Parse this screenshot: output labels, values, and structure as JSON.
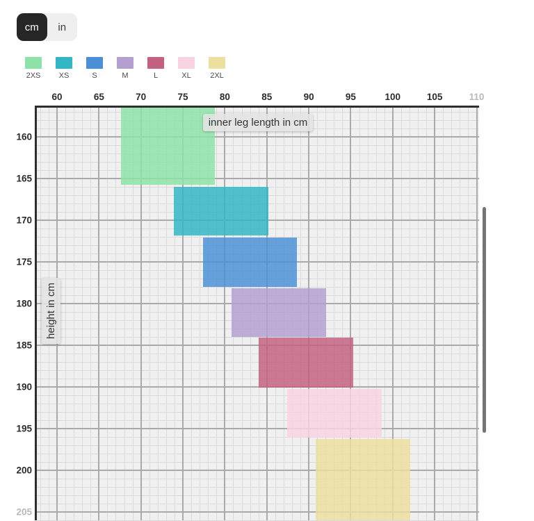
{
  "unit_toggle": {
    "options": [
      {
        "label": "cm",
        "selected": true
      },
      {
        "label": "in",
        "selected": false
      }
    ]
  },
  "legend": {
    "items": [
      {
        "label": "2XS",
        "color": "#8de2a7"
      },
      {
        "label": "XS",
        "color": "#32b6c6"
      },
      {
        "label": "S",
        "color": "#4b90d6"
      },
      {
        "label": "M",
        "color": "#b3a0d0"
      },
      {
        "label": "L",
        "color": "#c46181"
      },
      {
        "label": "XL",
        "color": "#f9d3e1"
      },
      {
        "label": "2XL",
        "color": "#eddf9e"
      }
    ]
  },
  "chart_data": {
    "type": "range-boxes",
    "description": "Size chart: colored rectangles give the inner leg length range (x) and body height range (y) covered by each clothing/bike size. Top-left of chart is clipped by a scrollable viewport.",
    "x_axis": {
      "label": "inner leg length in cm",
      "ticks": [
        60,
        65,
        70,
        75,
        80,
        85,
        90,
        95,
        100,
        105,
        110
      ],
      "faded_ticks": [
        110
      ],
      "minor_step": 1,
      "major_step": 5,
      "visible_range": [
        57.6,
        110.0
      ]
    },
    "y_axis": {
      "label": "height in cm",
      "ticks": [
        160,
        165,
        170,
        175,
        180,
        185,
        190,
        195,
        200,
        205
      ],
      "faded_ticks": [
        205
      ],
      "minor_step": 1,
      "major_step": 5,
      "visible_range": [
        156.5,
        206.0
      ],
      "direction": "increasing-downward"
    },
    "grid": true,
    "series": [
      {
        "label": "2XS",
        "color": "#8de2a7",
        "inner_leg_cm": [
          67.6,
          78.8
        ],
        "height_cm": [
          156.5,
          165.8
        ],
        "clipped": "top"
      },
      {
        "label": "XS",
        "color": "#32b6c6",
        "inner_leg_cm": [
          73.9,
          85.2
        ],
        "height_cm": [
          166.0,
          171.9
        ],
        "clipped": ""
      },
      {
        "label": "S",
        "color": "#4b90d6",
        "inner_leg_cm": [
          77.4,
          88.6
        ],
        "height_cm": [
          172.1,
          178.0
        ],
        "clipped": ""
      },
      {
        "label": "M",
        "color": "#b3a0d0",
        "inner_leg_cm": [
          80.8,
          92.1
        ],
        "height_cm": [
          178.2,
          184.0
        ],
        "clipped": ""
      },
      {
        "label": "L",
        "color": "#c46181",
        "inner_leg_cm": [
          84.0,
          95.3
        ],
        "height_cm": [
          184.1,
          190.1
        ],
        "clipped": ""
      },
      {
        "label": "XL",
        "color": "#f9d3e1",
        "inner_leg_cm": [
          87.4,
          98.7
        ],
        "height_cm": [
          190.3,
          196.1
        ],
        "clipped": ""
      },
      {
        "label": "2XL",
        "color": "#eddf9e",
        "inner_leg_cm": [
          90.8,
          102.1
        ],
        "height_cm": [
          196.3,
          206.0
        ],
        "clipped": "bottom"
      }
    ]
  },
  "scrollbar": {
    "orientation": "vertical",
    "present": true
  }
}
